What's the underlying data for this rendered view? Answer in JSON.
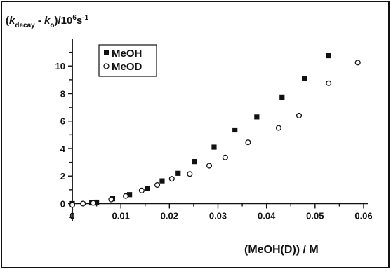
{
  "chart_data": {
    "type": "scatter",
    "title": "",
    "ylabel": {
      "open": "(",
      "k1": "k",
      "sub1": "decay",
      "minus": " - ",
      "k2": "k",
      "sub2": "o",
      "tail": ")/10",
      "exp": "6",
      "unit": "s",
      "unitexp": "-1"
    },
    "xlabel": "(MeOH(D)) / M",
    "xlim": [
      0,
      0.06
    ],
    "ylim": [
      -1.3,
      12
    ],
    "xticks": [
      "0",
      "0.01",
      "0.02",
      "0.03",
      "0.04",
      "0.05",
      "0.06"
    ],
    "yticks": [
      "0",
      "2",
      "4",
      "6",
      "8",
      "10"
    ],
    "grid": false,
    "legend_position": "top-left",
    "series": [
      {
        "name": "MeOH",
        "marker": "filled-square",
        "color": "#111111",
        "points": [
          [
            0.0,
            0.0
          ],
          [
            0.004,
            0.05
          ],
          [
            0.005,
            0.1
          ],
          [
            0.0083,
            0.35
          ],
          [
            0.0118,
            0.65
          ],
          [
            0.0155,
            1.1
          ],
          [
            0.0185,
            1.65
          ],
          [
            0.0218,
            2.2
          ],
          [
            0.0252,
            3.05
          ],
          [
            0.0292,
            4.1
          ],
          [
            0.0335,
            5.35
          ],
          [
            0.038,
            6.3
          ],
          [
            0.0432,
            7.75
          ],
          [
            0.0478,
            9.1
          ],
          [
            0.0528,
            10.75
          ]
        ]
      },
      {
        "name": "MeOD",
        "marker": "open-circle",
        "color": "#111111",
        "points": [
          [
            0.0,
            -0.1
          ],
          [
            0.0022,
            0.0
          ],
          [
            0.0043,
            0.05
          ],
          [
            0.008,
            0.3
          ],
          [
            0.011,
            0.55
          ],
          [
            0.0143,
            0.95
          ],
          [
            0.0175,
            1.35
          ],
          [
            0.0205,
            1.8
          ],
          [
            0.0242,
            2.15
          ],
          [
            0.0282,
            2.75
          ],
          [
            0.0315,
            3.35
          ],
          [
            0.0362,
            4.45
          ],
          [
            0.0425,
            5.5
          ],
          [
            0.0467,
            6.4
          ],
          [
            0.0528,
            8.75
          ],
          [
            0.0588,
            10.25
          ]
        ]
      }
    ]
  }
}
